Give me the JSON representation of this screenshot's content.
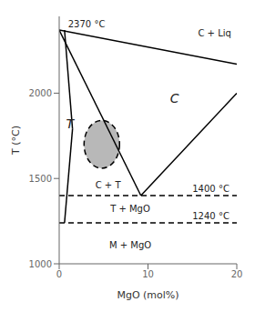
{
  "chart_data": {
    "type": "line",
    "xlabel": "MgO (mol%)",
    "ylabel": "T (°C)",
    "xlim": [
      0,
      20
    ],
    "ylim": [
      1000,
      2450
    ],
    "xticks": [
      0,
      10,
      20
    ],
    "yticks": [
      1000,
      1500,
      2000
    ],
    "color": "#000000",
    "series": [
      {
        "x": [
          0,
          9.2
        ],
        "values": [
          2370,
          1400
        ],
        "line_style": "solid"
      },
      {
        "x": [
          0,
          20
        ],
        "values": [
          2370,
          2170
        ],
        "line_style": "solid"
      },
      {
        "x": [
          9.2,
          20
        ],
        "values": [
          1400,
          2000
        ],
        "line_style": "solid"
      },
      {
        "x": [
          0.6,
          1.5
        ],
        "values": [
          2370,
          1790
        ],
        "line_style": "solid"
      },
      {
        "x": [
          1.5,
          0.6
        ],
        "values": [
          1790,
          1240
        ],
        "line_style": "solid"
      },
      {
        "x": [
          0,
          20
        ],
        "values": [
          1400,
          1400
        ],
        "line_style": "dashed"
      },
      {
        "x": [
          0,
          20
        ],
        "values": [
          1240,
          1240
        ],
        "line_style": "dashed"
      }
    ],
    "ellipse": {
      "cx": 4.8,
      "cy": 1700,
      "rx": 2.0,
      "ry": 140,
      "color": "#b8b8b8",
      "line_style": "dashed"
    },
    "annotations": [
      {
        "x": 1.0,
        "y": 2375,
        "text": "2370 °C"
      },
      {
        "x": 15.0,
        "y": 1410,
        "text": "1400 °C"
      },
      {
        "x": 15.0,
        "y": 1250,
        "text": "1240 °C"
      }
    ],
    "labels": [
      {
        "x": 17.5,
        "y": 2350,
        "text": "C + Liq"
      },
      {
        "x": 13.0,
        "y": 1970,
        "text": "C"
      },
      {
        "x": 1.2,
        "y": 1820,
        "text": "T"
      },
      {
        "x": 5.5,
        "y": 1460,
        "text": "C + T"
      },
      {
        "x": 8.0,
        "y": 1320,
        "text": "T + MgO"
      },
      {
        "x": 8.0,
        "y": 1110,
        "text": "M + MgO"
      }
    ]
  }
}
